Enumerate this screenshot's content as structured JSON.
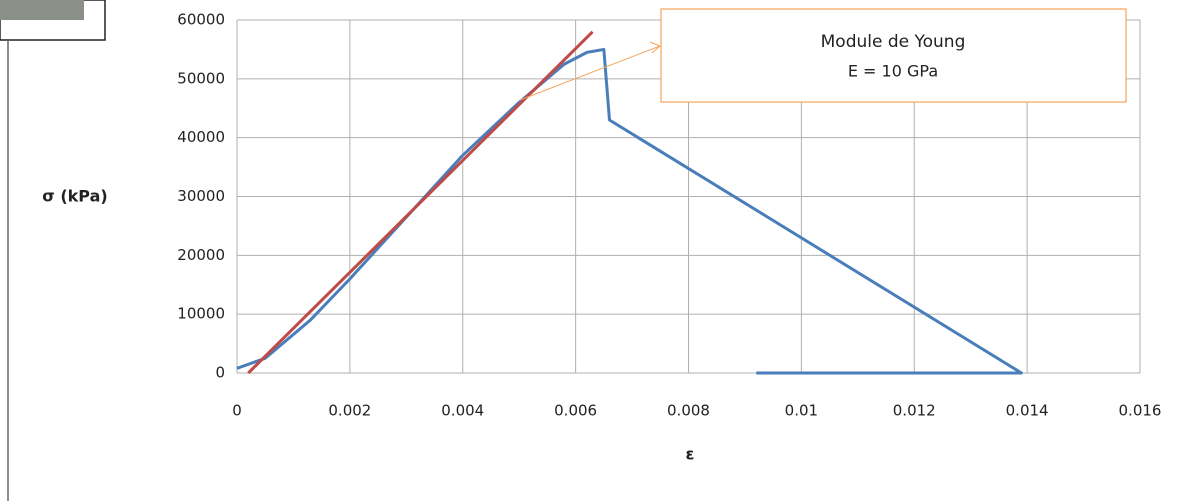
{
  "chart_data": {
    "type": "line",
    "x_label": "ε",
    "y_label": "σ (kPa)",
    "annotation": [
      "Module de Young",
      "E = 10 GPa"
    ],
    "series": [
      {
        "color": "#4a7ebb",
        "x": [
          0,
          0.0005,
          0.0013,
          0.002,
          0.003,
          0.004,
          0.005,
          0.0058,
          0.0062,
          0.0065,
          0.0066,
          0.0139,
          0.0092
        ],
        "values": [
          800,
          2500,
          9000,
          16000,
          26500,
          37000,
          46000,
          52500,
          54500,
          55000,
          43000,
          0,
          0
        ]
      },
      {
        "color": "#be4b48",
        "x": [
          0.0002,
          0.0063
        ],
        "values": [
          0,
          58000
        ]
      }
    ],
    "xlim": [
      0,
      0.016
    ],
    "ylim": [
      0,
      60000
    ],
    "xticks": [
      0,
      0.002,
      0.004,
      0.006,
      0.008,
      0.01,
      0.012,
      0.014,
      0.016
    ],
    "yticks": [
      0,
      10000,
      20000,
      30000,
      40000,
      50000,
      60000
    ],
    "grid": true
  }
}
